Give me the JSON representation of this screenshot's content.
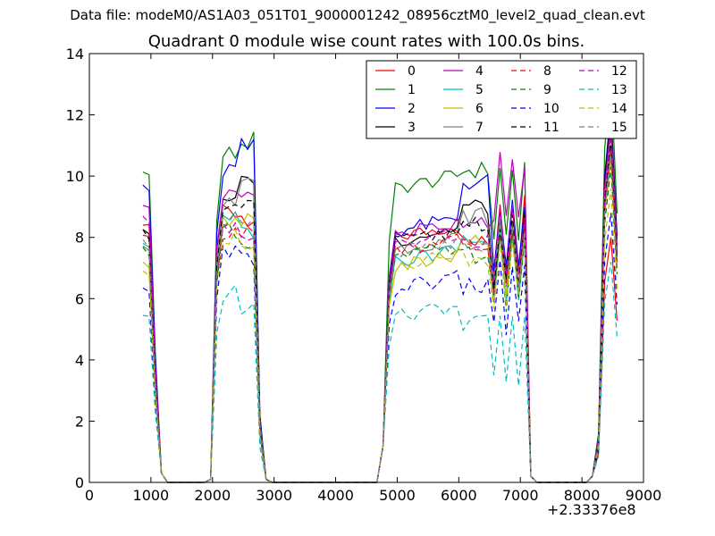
{
  "figure": {
    "suptitle": "Data file: modeM0/AS1A03_051T01_9000001242_08956cztM0_level2_quad_clean.evt",
    "offset_label": "+2.33376e8"
  },
  "chart_data": {
    "type": "line",
    "title": "Quadrant 0 module wise count rates with 100.0s bins.",
    "xlabel": "",
    "ylabel": "",
    "xlim": [
      0,
      9000
    ],
    "ylim": [
      0,
      14
    ],
    "x_offset_label": "+2.33376e8",
    "xticks": [
      0,
      1000,
      2000,
      3000,
      4000,
      5000,
      6000,
      7000,
      8000,
      9000
    ],
    "yticks": [
      0,
      2,
      4,
      6,
      8,
      10,
      12,
      14
    ],
    "legend_position": "top-right",
    "legend_columns": 4,
    "x": [
      870,
      970,
      1070,
      1170,
      1270,
      1370,
      1470,
      1570,
      1670,
      1770,
      1870,
      1970,
      2070,
      2170,
      2270,
      2370,
      2470,
      2570,
      2670,
      2770,
      2870,
      2970,
      3070,
      3170,
      3270,
      3370,
      3470,
      3570,
      3670,
      3770,
      3870,
      3970,
      4070,
      4170,
      4270,
      4370,
      4470,
      4570,
      4670,
      4770,
      4870,
      4970,
      5070,
      5170,
      5270,
      5370,
      5470,
      5570,
      5670,
      5770,
      5870,
      5970,
      6070,
      6170,
      6270,
      6370,
      6470,
      6570,
      6670,
      6770,
      6870,
      6970,
      7070,
      7170,
      7270,
      7370,
      7470,
      7570,
      7670,
      7770,
      7870,
      7970,
      8070,
      8170,
      8270,
      8370,
      8470,
      8570
    ],
    "segments": [
      [
        0,
        11
      ],
      [
        11,
        20
      ],
      [
        20,
        39
      ],
      [
        39,
        64
      ],
      [
        64,
        73
      ],
      [
        73,
        78
      ]
    ],
    "series": [
      {
        "name": "0",
        "color": "#ff0000",
        "dash": "solid",
        "plateau": [
          8.5,
          8.7,
          8.4,
          8.0,
          7.8,
          8.2,
          8.0
        ]
      },
      {
        "name": "1",
        "color": "#008000",
        "dash": "solid",
        "plateau": [
          10.2,
          10.7,
          11.1,
          9.6,
          10.2,
          9.2,
          13.3
        ]
      },
      {
        "name": "2",
        "color": "#0000ff",
        "dash": "solid",
        "plateau": [
          9.8,
          10.2,
          10.9,
          8.2,
          9.8,
          8.0,
          12.2
        ]
      },
      {
        "name": "3",
        "color": "#000000",
        "dash": "solid",
        "plateau": [
          8.3,
          9.5,
          10.0,
          7.9,
          9.0,
          7.6,
          12.0
        ]
      },
      {
        "name": "4",
        "color": "#bf00bf",
        "dash": "solid",
        "plateau": [
          9.1,
          9.6,
          9.5,
          8.1,
          8.6,
          9.6,
          11.7
        ]
      },
      {
        "name": "5",
        "color": "#00bfbf",
        "dash": "solid",
        "plateau": [
          7.9,
          8.7,
          8.3,
          7.2,
          7.9,
          7.3,
          11.0
        ]
      },
      {
        "name": "6",
        "color": "#bfbf00",
        "dash": "solid",
        "plateau": [
          7.1,
          8.4,
          8.5,
          7.0,
          7.8,
          7.2,
          10.6
        ]
      },
      {
        "name": "7",
        "color": "#808080",
        "dash": "solid",
        "plateau": [
          7.8,
          9.0,
          9.7,
          7.6,
          8.7,
          7.6,
          11.4
        ]
      },
      {
        "name": "8",
        "color": "#ff0000",
        "dash": "dashed",
        "plateau": [
          8.1,
          8.2,
          8.0,
          7.5,
          7.6,
          7.4,
          10.9
        ]
      },
      {
        "name": "9",
        "color": "#008000",
        "dash": "dashed",
        "plateau": [
          7.6,
          8.1,
          7.9,
          7.3,
          7.4,
          7.0,
          10.3
        ]
      },
      {
        "name": "10",
        "color": "#0000ff",
        "dash": "dashed",
        "plateau": [
          6.3,
          7.5,
          7.3,
          6.3,
          6.4,
          6.2,
          8.8
        ]
      },
      {
        "name": "11",
        "color": "#000000",
        "dash": "dashed",
        "plateau": [
          8.2,
          8.8,
          9.0,
          7.8,
          8.5,
          7.5,
          11.2
        ]
      },
      {
        "name": "12",
        "color": "#bf00bf",
        "dash": "dashed",
        "plateau": [
          8.7,
          8.4,
          8.2,
          7.7,
          7.8,
          7.9,
          11.4
        ]
      },
      {
        "name": "13",
        "color": "#00bfbf",
        "dash": "dashed",
        "plateau": [
          5.5,
          6.1,
          5.7,
          5.4,
          5.2,
          4.5,
          7.2
        ]
      },
      {
        "name": "14",
        "color": "#bfbf00",
        "dash": "dashed",
        "plateau": [
          6.9,
          8.1,
          7.8,
          7.1,
          7.3,
          7.1,
          9.6
        ]
      },
      {
        "name": "15",
        "color": "#808080",
        "dash": "dashed",
        "plateau": [
          7.9,
          8.5,
          8.3,
          7.5,
          7.8,
          7.3,
          10.7
        ]
      }
    ]
  }
}
